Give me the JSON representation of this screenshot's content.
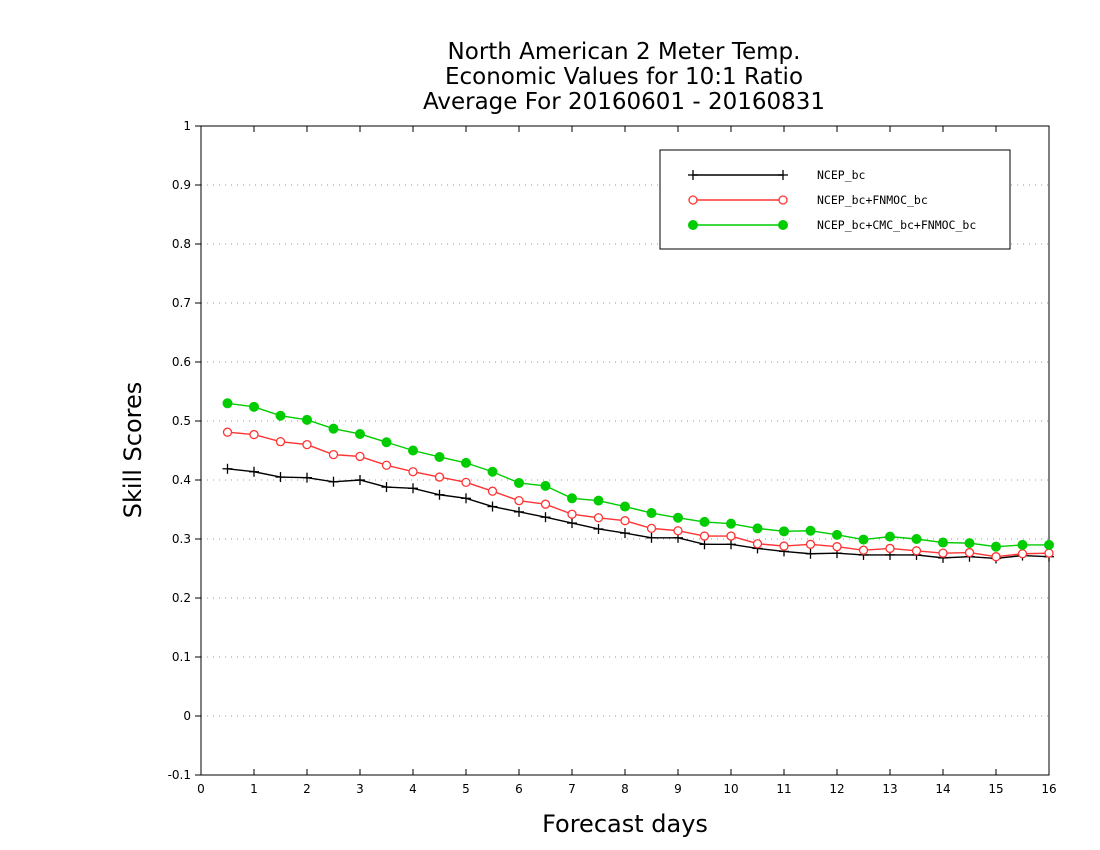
{
  "chart_data": {
    "type": "line",
    "title": [
      "North American 2 Meter Temp.",
      "Economic Values for 10:1 Ratio",
      "Average For 20160601 - 20160831"
    ],
    "xlabel": "Forecast days",
    "ylabel": "Skill Scores",
    "xlim": [
      0,
      16
    ],
    "ylim": [
      -0.1,
      1
    ],
    "xticks": [
      0,
      1,
      2,
      3,
      4,
      5,
      6,
      7,
      8,
      9,
      10,
      11,
      12,
      13,
      14,
      15,
      16
    ],
    "xtick_labels": [
      "0",
      "1",
      "2",
      "3",
      "4",
      "5",
      "6",
      "7",
      "8",
      "9",
      "10",
      "11",
      "12",
      "13",
      "14",
      "15",
      "16"
    ],
    "yticks": [
      -0.1,
      0,
      0.1,
      0.2,
      0.3,
      0.4,
      0.5,
      0.6,
      0.7,
      0.8,
      0.9,
      1
    ],
    "ytick_labels": [
      "-0.1",
      "0",
      "0.1",
      "0.2",
      "0.3",
      "0.4",
      "0.5",
      "0.6",
      "0.7",
      "0.8",
      "0.9",
      "1"
    ],
    "grid": "horizontal dotted",
    "legend_position": "top-right",
    "x": [
      0.5,
      1,
      1.5,
      2,
      2.5,
      3,
      3.5,
      4,
      4.5,
      5,
      5.5,
      6,
      6.5,
      7,
      7.5,
      8,
      8.5,
      9,
      9.5,
      10,
      10.5,
      11,
      11.5,
      12,
      12.5,
      13,
      13.5,
      14,
      14.5,
      15,
      15.5,
      16
    ],
    "series": [
      {
        "name": "NCEP_bc",
        "color": "#000000",
        "marker": "plus",
        "values": [
          0.419,
          0.414,
          0.405,
          0.404,
          0.397,
          0.4,
          0.388,
          0.386,
          0.375,
          0.369,
          0.355,
          0.346,
          0.337,
          0.327,
          0.317,
          0.31,
          0.302,
          0.302,
          0.291,
          0.291,
          0.284,
          0.279,
          0.275,
          0.276,
          0.273,
          0.273,
          0.273,
          0.268,
          0.27,
          0.267,
          0.272,
          0.27
        ]
      },
      {
        "name": "NCEP_bc+FNMOC_bc",
        "color": "#ff3333",
        "marker": "open-circle",
        "values": [
          0.481,
          0.477,
          0.465,
          0.46,
          0.443,
          0.44,
          0.425,
          0.414,
          0.405,
          0.396,
          0.381,
          0.365,
          0.359,
          0.342,
          0.336,
          0.331,
          0.318,
          0.314,
          0.305,
          0.305,
          0.292,
          0.288,
          0.291,
          0.287,
          0.281,
          0.284,
          0.28,
          0.276,
          0.277,
          0.27,
          0.275,
          0.276
        ]
      },
      {
        "name": "NCEP_bc+CMC_bc+FNMOC_bc",
        "color": "#00cc00",
        "marker": "filled-circle",
        "values": [
          0.53,
          0.524,
          0.509,
          0.502,
          0.487,
          0.478,
          0.464,
          0.45,
          0.439,
          0.429,
          0.414,
          0.395,
          0.39,
          0.369,
          0.365,
          0.355,
          0.344,
          0.336,
          0.329,
          0.326,
          0.318,
          0.313,
          0.314,
          0.307,
          0.299,
          0.304,
          0.3,
          0.294,
          0.293,
          0.287,
          0.29,
          0.29
        ]
      }
    ]
  }
}
